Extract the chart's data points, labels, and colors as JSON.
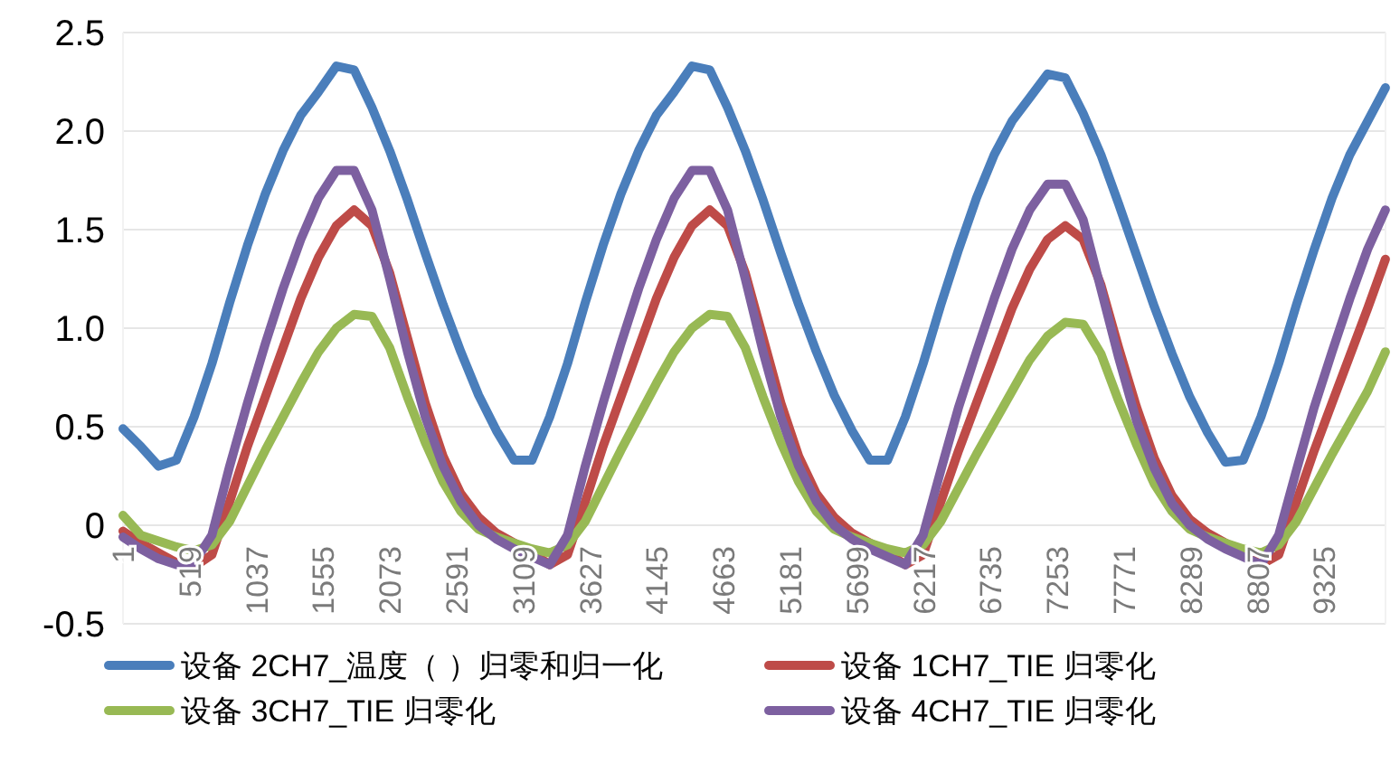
{
  "chart_data": {
    "type": "line",
    "x": [
      1,
      139,
      277,
      415,
      553,
      691,
      829,
      967,
      1105,
      1243,
      1381,
      1519,
      1657,
      1795,
      1933,
      2071,
      2209,
      2347,
      2485,
      2623,
      2761,
      2899,
      3037,
      3175,
      3313,
      3451,
      3589,
      3727,
      3865,
      4003,
      4141,
      4279,
      4417,
      4555,
      4693,
      4831,
      4969,
      5107,
      5245,
      5383,
      5521,
      5659,
      5797,
      5935,
      6073,
      6211,
      6349,
      6487,
      6625,
      6763,
      6901,
      7039,
      7177,
      7315,
      7453,
      7591,
      7729,
      7867,
      8005,
      8143,
      8281,
      8419,
      8557,
      8695,
      8833,
      8971,
      9109,
      9247,
      9385,
      9523,
      9661,
      9799
    ],
    "xlim": [
      1,
      9800
    ],
    "xticks": [
      1,
      519,
      1037,
      1555,
      2073,
      2591,
      3109,
      3627,
      4145,
      4663,
      5181,
      5699,
      6217,
      6735,
      7253,
      7771,
      8289,
      8807,
      9325
    ],
    "ylim": [
      -0.5,
      2.5
    ],
    "yticks": [
      -0.5,
      0,
      {
        "value": 0.5,
        "label": "0.5"
      },
      {
        "value": 1,
        "label": "1.0"
      },
      1.5,
      {
        "value": 2,
        "label": "2.0"
      },
      2.5
    ],
    "grid": "y",
    "legend": "bottom",
    "series": [
      {
        "name": "设备 2CH7_温度（   ）归零和归一化",
        "color": "#4a7ebb",
        "values": [
          0.49,
          0.4,
          0.3,
          0.33,
          0.55,
          0.82,
          1.13,
          1.42,
          1.68,
          1.9,
          2.08,
          2.2,
          2.33,
          2.31,
          2.12,
          1.9,
          1.65,
          1.38,
          1.12,
          0.88,
          0.66,
          0.48,
          0.33,
          0.33,
          0.55,
          0.82,
          1.13,
          1.42,
          1.68,
          1.9,
          2.08,
          2.2,
          2.33,
          2.31,
          2.12,
          1.9,
          1.65,
          1.38,
          1.12,
          0.88,
          0.66,
          0.48,
          0.33,
          0.33,
          0.55,
          0.82,
          1.12,
          1.4,
          1.66,
          1.88,
          2.05,
          2.17,
          2.29,
          2.27,
          2.09,
          1.88,
          1.63,
          1.37,
          1.11,
          0.87,
          0.65,
          0.47,
          0.32,
          0.33,
          0.55,
          0.82,
          1.12,
          1.4,
          1.66,
          1.88,
          2.05,
          2.22
        ]
      },
      {
        "name": "设备 1CH7_TIE 归零化",
        "color": "#be4b48",
        "values": [
          -0.03,
          -0.09,
          -0.14,
          -0.19,
          -0.21,
          -0.15,
          0.12,
          0.4,
          0.65,
          0.9,
          1.15,
          1.36,
          1.52,
          1.6,
          1.52,
          1.28,
          0.95,
          0.62,
          0.35,
          0.16,
          0.04,
          -0.04,
          -0.09,
          -0.14,
          -0.2,
          -0.15,
          0.12,
          0.4,
          0.65,
          0.9,
          1.15,
          1.36,
          1.52,
          1.6,
          1.52,
          1.28,
          0.95,
          0.62,
          0.35,
          0.16,
          0.04,
          -0.04,
          -0.09,
          -0.14,
          -0.2,
          -0.15,
          0.12,
          0.38,
          0.62,
          0.86,
          1.1,
          1.3,
          1.45,
          1.52,
          1.45,
          1.22,
          0.9,
          0.6,
          0.34,
          0.15,
          0.03,
          -0.04,
          -0.09,
          -0.14,
          -0.2,
          -0.15,
          0.12,
          0.38,
          0.62,
          0.86,
          1.1,
          1.35
        ]
      },
      {
        "name": "设备 3CH7_TIE 归零化",
        "color": "#98b954",
        "values": [
          0.05,
          -0.05,
          -0.08,
          -0.11,
          -0.13,
          -0.1,
          0.02,
          0.2,
          0.38,
          0.55,
          0.72,
          0.88,
          1.0,
          1.07,
          1.06,
          0.9,
          0.65,
          0.42,
          0.22,
          0.07,
          -0.02,
          -0.06,
          -0.09,
          -0.12,
          -0.14,
          -0.1,
          0.02,
          0.2,
          0.38,
          0.55,
          0.72,
          0.88,
          1.0,
          1.07,
          1.06,
          0.9,
          0.65,
          0.42,
          0.22,
          0.07,
          -0.02,
          -0.06,
          -0.09,
          -0.12,
          -0.14,
          -0.1,
          0.02,
          0.19,
          0.36,
          0.52,
          0.68,
          0.84,
          0.96,
          1.03,
          1.02,
          0.87,
          0.63,
          0.41,
          0.21,
          0.07,
          -0.02,
          -0.06,
          -0.09,
          -0.12,
          -0.14,
          -0.1,
          0.02,
          0.19,
          0.36,
          0.52,
          0.68,
          0.88
        ]
      },
      {
        "name": "设备 4CH7_TIE 归零化",
        "color": "#7d60a0",
        "values": [
          -0.06,
          -0.12,
          -0.17,
          -0.2,
          -0.19,
          -0.05,
          0.3,
          0.62,
          0.92,
          1.2,
          1.45,
          1.66,
          1.8,
          1.8,
          1.6,
          1.25,
          0.88,
          0.55,
          0.3,
          0.12,
          0.0,
          -0.07,
          -0.12,
          -0.16,
          -0.2,
          -0.05,
          0.3,
          0.62,
          0.92,
          1.2,
          1.45,
          1.66,
          1.8,
          1.8,
          1.6,
          1.25,
          0.88,
          0.55,
          0.3,
          0.12,
          0.0,
          -0.07,
          -0.12,
          -0.16,
          -0.2,
          -0.05,
          0.28,
          0.6,
          0.88,
          1.15,
          1.4,
          1.6,
          1.73,
          1.73,
          1.55,
          1.2,
          0.85,
          0.53,
          0.29,
          0.11,
          0.0,
          -0.07,
          -0.12,
          -0.16,
          -0.2,
          -0.05,
          0.28,
          0.6,
          0.88,
          1.15,
          1.4,
          1.6
        ]
      }
    ]
  }
}
